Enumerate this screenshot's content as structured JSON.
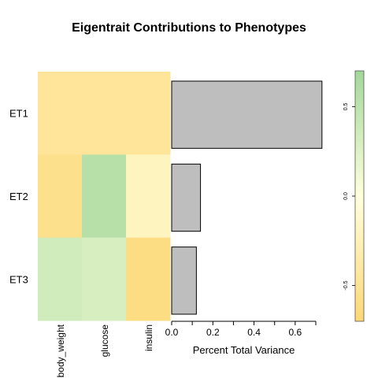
{
  "chart_data": [
    {
      "type": "heatmap",
      "title": "Eigentrait Contributions to Phenotypes",
      "rows": [
        "ET1",
        "ET2",
        "ET3"
      ],
      "columns": [
        "body_weight",
        "glucose",
        "insulin"
      ],
      "values": [
        [
          -0.45,
          -0.45,
          -0.45
        ],
        [
          -0.55,
          0.55,
          -0.2
        ],
        [
          0.35,
          0.3,
          -0.6
        ]
      ],
      "colorbar": {
        "range": [
          -0.7,
          0.7
        ],
        "ticks": [
          0.5,
          0.0,
          -0.5
        ],
        "tick_labels": [
          "0.5",
          "0.0",
          "-0.5"
        ],
        "low_color": "#FDD775",
        "mid_color": "#FFFFDD",
        "high_color": "#A2D89A"
      }
    },
    {
      "type": "bar",
      "orientation": "horizontal",
      "categories": [
        "ET1",
        "ET2",
        "ET3"
      ],
      "values": [
        0.73,
        0.14,
        0.12
      ],
      "xlabel": "Percent Total Variance",
      "xlim": [
        0,
        0.7
      ],
      "x_ticks": [
        0.0,
        0.1,
        0.2,
        0.3,
        0.4,
        0.5,
        0.6,
        0.7
      ],
      "x_tick_labels": [
        "0.0",
        "0.2",
        "0.4",
        "0.6"
      ],
      "bar_color": "#BEBEBE"
    }
  ]
}
